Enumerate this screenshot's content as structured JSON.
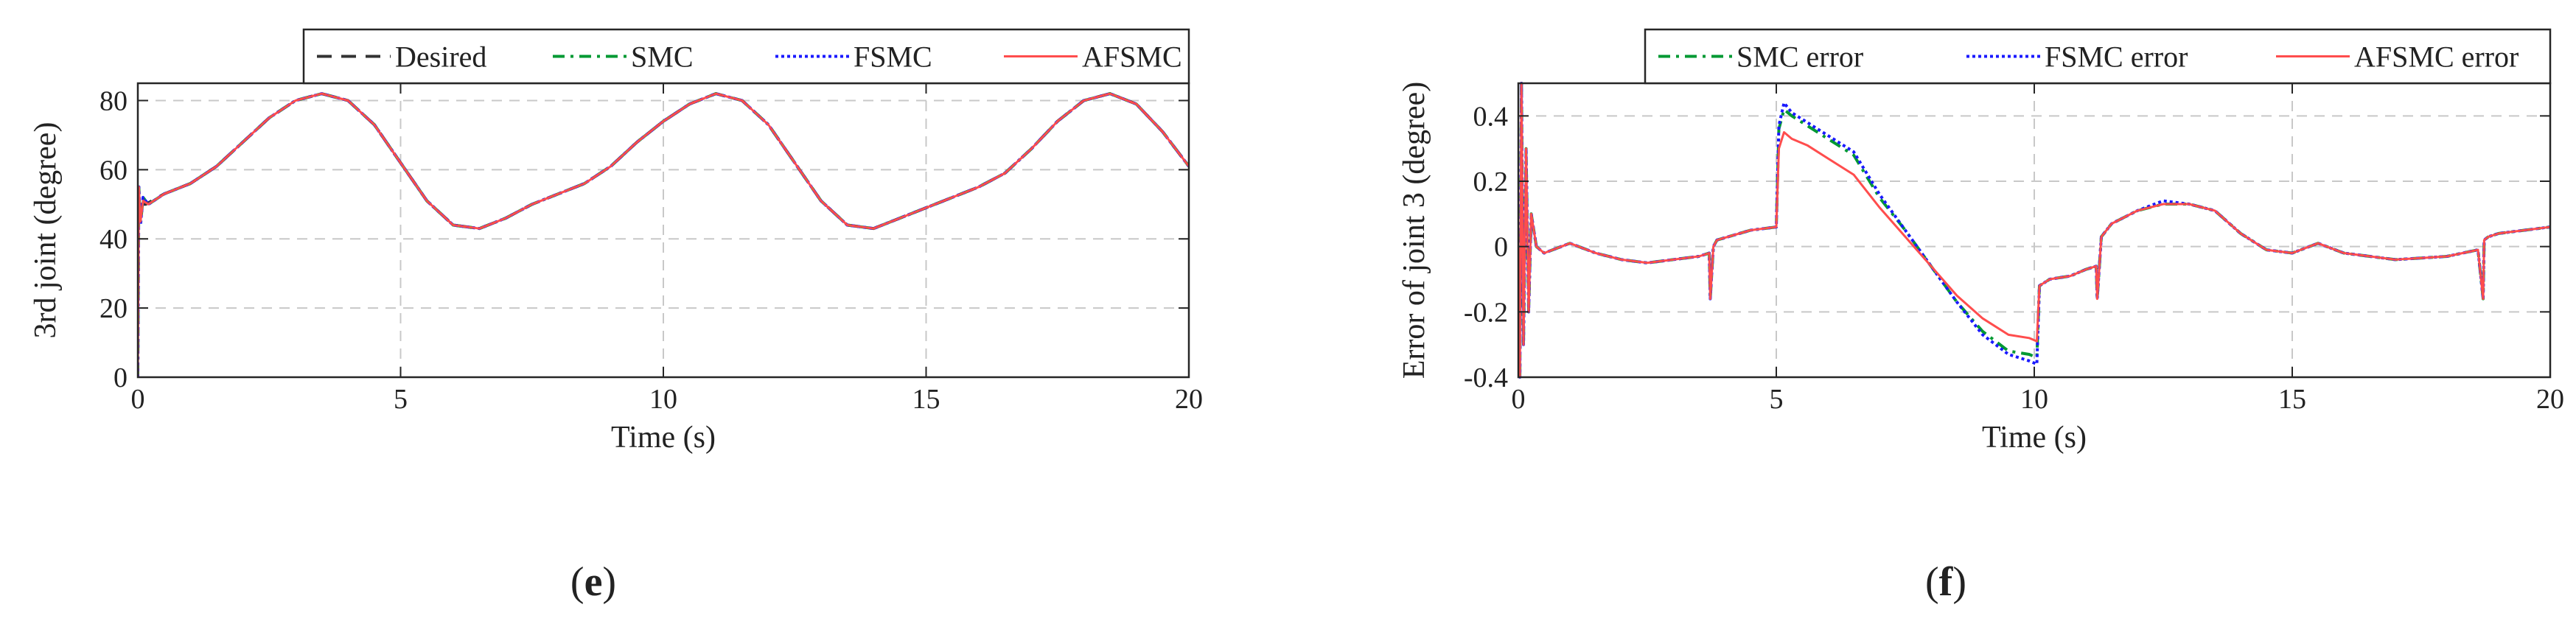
{
  "chart_data": [
    {
      "type": "line",
      "panel_label_prefix": "(",
      "panel_label_letter": "e",
      "panel_label_suffix": ")",
      "xlabel": "Time (s)",
      "ylabel": "3rd joint (degree)",
      "xlim": [
        0,
        20
      ],
      "ylim": [
        0,
        85
      ],
      "xticks": [
        0,
        5,
        10,
        15,
        20
      ],
      "yticks": [
        0,
        20,
        40,
        60,
        80
      ],
      "grid": true,
      "legend_position": "top-right, outside above plot",
      "series": [
        {
          "name": "Desired",
          "color": "#333333",
          "style": "dashed",
          "x": [
            0,
            0.05,
            0.15,
            0.5,
            1,
            1.5,
            2,
            2.5,
            3,
            3.5,
            4,
            4.5,
            5,
            5.5,
            6,
            6.5,
            7,
            7.5,
            8,
            8.5,
            9,
            9.5,
            10,
            10.5,
            11,
            11.5,
            12,
            12.5,
            13,
            13.5,
            14,
            14.5,
            15,
            15.5,
            16,
            16.5,
            17,
            17.5,
            18,
            18.5,
            19,
            19.5,
            20
          ],
          "y": [
            50,
            50,
            50,
            53,
            56,
            61,
            68,
            75,
            80,
            82,
            80,
            73,
            62,
            51,
            44,
            43,
            46,
            50,
            53,
            56,
            61,
            68,
            74,
            79,
            82,
            80,
            73,
            62,
            51,
            44,
            43,
            46,
            49,
            52,
            55,
            59,
            66,
            74,
            80,
            82,
            79,
            71,
            61
          ]
        },
        {
          "name": "SMC",
          "color": "#009933",
          "style": "dashdot",
          "x": [
            0,
            0.02,
            0.05,
            0.1,
            0.2,
            0.5,
            1,
            1.5,
            2,
            2.5,
            3,
            3.5,
            4,
            4.5,
            5,
            5.5,
            6,
            6.5,
            7,
            7.5,
            8,
            8.5,
            9,
            9.5,
            10,
            10.5,
            11,
            11.5,
            12,
            12.5,
            13,
            13.5,
            14,
            14.5,
            15,
            15.5,
            16,
            16.5,
            17,
            17.5,
            18,
            18.5,
            19,
            19.5,
            20
          ],
          "y": [
            0,
            55,
            44,
            52,
            50,
            53,
            56,
            61,
            68,
            75,
            80,
            82,
            80,
            73,
            62,
            51,
            44,
            43,
            46,
            50,
            53,
            56,
            61,
            68,
            74,
            79,
            82,
            80,
            73,
            62,
            51,
            44,
            43,
            46,
            49,
            52,
            55,
            59,
            66,
            74,
            80,
            82,
            79,
            71,
            61
          ]
        },
        {
          "name": "FSMC",
          "color": "#1a1aff",
          "style": "dotted",
          "x": [
            0,
            0.02,
            0.05,
            0.1,
            0.2,
            0.5,
            1,
            1.5,
            2,
            2.5,
            3,
            3.5,
            4,
            4.5,
            5,
            5.5,
            6,
            6.5,
            7,
            7.5,
            8,
            8.5,
            9,
            9.5,
            10,
            10.5,
            11,
            11.5,
            12,
            12.5,
            13,
            13.5,
            14,
            14.5,
            15,
            15.5,
            16,
            16.5,
            17,
            17.5,
            18,
            18.5,
            19,
            19.5,
            20
          ],
          "y": [
            0,
            55,
            44,
            52,
            50,
            53,
            56,
            61,
            68,
            75,
            80,
            82,
            80,
            73,
            62,
            51,
            44,
            43,
            46,
            50,
            53,
            56,
            61,
            68,
            74,
            79,
            82,
            80,
            73,
            62,
            51,
            44,
            43,
            46,
            49,
            52,
            55,
            59,
            66,
            74,
            80,
            82,
            79,
            71,
            61
          ]
        },
        {
          "name": "AFSMC",
          "color": "#ff4d4d",
          "style": "solid",
          "x": [
            0,
            0.02,
            0.05,
            0.1,
            0.2,
            0.5,
            1,
            1.5,
            2,
            2.5,
            3,
            3.5,
            4,
            4.5,
            5,
            5.5,
            6,
            6.5,
            7,
            7.5,
            8,
            8.5,
            9,
            9.5,
            10,
            10.5,
            11,
            11.5,
            12,
            12.5,
            13,
            13.5,
            14,
            14.5,
            15,
            15.5,
            16,
            16.5,
            17,
            17.5,
            18,
            18.5,
            19,
            19.5,
            20
          ],
          "y": [
            0,
            55,
            45,
            51,
            50,
            53,
            56,
            61,
            68,
            75,
            80,
            82,
            80,
            73,
            62,
            51,
            44,
            43,
            46,
            50,
            53,
            56,
            61,
            68,
            74,
            79,
            82,
            80,
            73,
            62,
            51,
            44,
            43,
            46,
            49,
            52,
            55,
            59,
            66,
            74,
            80,
            82,
            79,
            71,
            61
          ]
        }
      ]
    },
    {
      "type": "line",
      "panel_label_prefix": "(",
      "panel_label_letter": "f",
      "panel_label_suffix": ")",
      "xlabel": "Time (s)",
      "ylabel": "Error of joint 3 (degree)",
      "xlim": [
        0,
        20
      ],
      "ylim": [
        -0.4,
        0.5
      ],
      "xticks": [
        0,
        5,
        10,
        15,
        20
      ],
      "yticks": [
        -0.4,
        -0.2,
        0,
        0.2,
        0.4
      ],
      "ytick_labels": [
        "-0.4",
        "-0.2",
        "0",
        "0.2",
        "0.4"
      ],
      "grid": true,
      "legend_position": "top-right, outside above plot",
      "series": [
        {
          "name": "SMC error",
          "color": "#009933",
          "style": "dashdot",
          "x": [
            0,
            0.03,
            0.06,
            0.1,
            0.15,
            0.2,
            0.25,
            0.35,
            0.5,
            1,
            1.5,
            2,
            2.5,
            3,
            3.5,
            3.7,
            3.72,
            3.78,
            3.85,
            4.5,
            5,
            5.05,
            5.15,
            5.3,
            5.6,
            6,
            6.5,
            7,
            7.5,
            8,
            8.5,
            9,
            9.5,
            9.9,
            10.05,
            10.1,
            10.3,
            10.7,
            11,
            11.2,
            11.22,
            11.3,
            11.5,
            12,
            12.5,
            13,
            13.5,
            14,
            14.5,
            15,
            15.5,
            16,
            17,
            18,
            18.6,
            18.7,
            18.72,
            18.8,
            19,
            19.5,
            20
          ],
          "y": [
            0,
            -0.4,
            0.5,
            -0.3,
            0.3,
            -0.2,
            0.1,
            0.0,
            -0.02,
            0.01,
            -0.02,
            -0.04,
            -0.05,
            -0.04,
            -0.03,
            -0.02,
            -0.16,
            0.0,
            0.02,
            0.05,
            0.06,
            0.36,
            0.42,
            0.4,
            0.37,
            0.33,
            0.28,
            0.15,
            0.05,
            -0.06,
            -0.17,
            -0.26,
            -0.32,
            -0.33,
            -0.34,
            -0.12,
            -0.1,
            -0.09,
            -0.07,
            -0.06,
            -0.16,
            0.03,
            0.07,
            0.11,
            0.13,
            0.13,
            0.11,
            0.04,
            -0.01,
            -0.02,
            0.01,
            -0.02,
            -0.04,
            -0.03,
            -0.01,
            -0.16,
            0.02,
            0.03,
            0.04,
            0.05,
            0.06
          ]
        },
        {
          "name": "FSMC error",
          "color": "#1a1aff",
          "style": "dotted",
          "x": [
            0,
            0.03,
            0.06,
            0.1,
            0.15,
            0.2,
            0.25,
            0.35,
            0.5,
            1,
            1.5,
            2,
            2.5,
            3,
            3.5,
            3.7,
            3.72,
            3.78,
            3.85,
            4.5,
            5,
            5.05,
            5.15,
            5.3,
            5.6,
            6,
            6.5,
            7,
            7.5,
            8,
            8.5,
            9,
            9.5,
            9.9,
            10.05,
            10.1,
            10.3,
            10.7,
            11,
            11.2,
            11.22,
            11.3,
            11.5,
            12,
            12.5,
            13,
            13.5,
            14,
            14.5,
            15,
            15.5,
            16,
            17,
            18,
            18.6,
            18.7,
            18.72,
            18.8,
            19,
            19.5,
            20
          ],
          "y": [
            0,
            -0.4,
            0.5,
            -0.3,
            0.3,
            -0.2,
            0.1,
            0.0,
            -0.02,
            0.01,
            -0.02,
            -0.04,
            -0.05,
            -0.04,
            -0.03,
            -0.02,
            -0.16,
            0.0,
            0.02,
            0.05,
            0.06,
            0.37,
            0.44,
            0.41,
            0.38,
            0.34,
            0.29,
            0.16,
            0.05,
            -0.06,
            -0.17,
            -0.27,
            -0.33,
            -0.35,
            -0.36,
            -0.12,
            -0.1,
            -0.09,
            -0.07,
            -0.06,
            -0.16,
            0.03,
            0.07,
            0.11,
            0.14,
            0.13,
            0.11,
            0.04,
            -0.01,
            -0.02,
            0.01,
            -0.02,
            -0.04,
            -0.03,
            -0.01,
            -0.16,
            0.02,
            0.03,
            0.04,
            0.05,
            0.06
          ]
        },
        {
          "name": "AFSMC error",
          "color": "#ff4d4d",
          "style": "solid",
          "x": [
            0,
            0.03,
            0.06,
            0.1,
            0.15,
            0.2,
            0.25,
            0.35,
            0.5,
            1,
            1.5,
            2,
            2.5,
            3,
            3.5,
            3.7,
            3.72,
            3.78,
            3.85,
            4.5,
            5,
            5.05,
            5.15,
            5.3,
            5.6,
            6,
            6.5,
            7,
            7.5,
            8,
            8.5,
            9,
            9.5,
            9.9,
            10.05,
            10.1,
            10.3,
            10.7,
            11,
            11.2,
            11.22,
            11.3,
            11.5,
            12,
            12.5,
            13,
            13.5,
            14,
            14.5,
            15,
            15.5,
            16,
            17,
            18,
            18.6,
            18.7,
            18.72,
            18.8,
            19,
            19.5,
            20
          ],
          "y": [
            0,
            -0.4,
            0.5,
            -0.3,
            0.3,
            -0.2,
            0.1,
            0.0,
            -0.02,
            0.01,
            -0.02,
            -0.04,
            -0.05,
            -0.04,
            -0.03,
            -0.02,
            -0.16,
            0.0,
            0.02,
            0.05,
            0.06,
            0.3,
            0.35,
            0.33,
            0.31,
            0.27,
            0.22,
            0.12,
            0.03,
            -0.06,
            -0.15,
            -0.22,
            -0.27,
            -0.28,
            -0.29,
            -0.12,
            -0.1,
            -0.09,
            -0.07,
            -0.06,
            -0.16,
            0.03,
            0.07,
            0.11,
            0.13,
            0.13,
            0.11,
            0.04,
            -0.01,
            -0.02,
            0.01,
            -0.02,
            -0.04,
            -0.03,
            -0.01,
            -0.16,
            0.02,
            0.03,
            0.04,
            0.05,
            0.06
          ]
        }
      ]
    }
  ]
}
